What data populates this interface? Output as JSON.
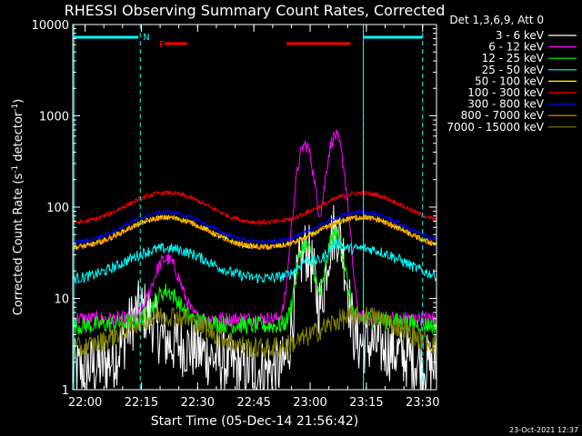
{
  "chart_data": {
    "type": "line",
    "title": "RHESSI Observing Summary Count Rates, Corrected",
    "xlabel": "Start Time (05-Dec-14 21:56:42)",
    "ylabel_main": "Corrected Count Rate (s",
    "ylabel_sup1": "-1",
    "ylabel_mid": " detector",
    "ylabel_sup2": "-1",
    "ylabel_end": ")",
    "yscale": "log",
    "ylim": [
      1,
      10000
    ],
    "xlim_minutes": [
      0,
      97
    ],
    "ytick_values": [
      1,
      10,
      100,
      1000,
      10000
    ],
    "ytick_labels": [
      "1",
      "10",
      "100",
      "1000",
      "10000"
    ],
    "xticks": [
      {
        "t": 3.3,
        "label": "22:00"
      },
      {
        "t": 18.3,
        "label": "22:15"
      },
      {
        "t": 33.3,
        "label": "22:30"
      },
      {
        "t": 48.3,
        "label": "22:45"
      },
      {
        "t": 63.3,
        "label": "23:00"
      },
      {
        "t": 78.3,
        "label": "23:15"
      },
      {
        "t": 93.3,
        "label": "23:30"
      }
    ],
    "legend_header": "Det 1,3,6,9, Att 0",
    "legend_placement": "outside-right",
    "series": [
      {
        "name": "3 - 6 keV",
        "color": "#ffffff",
        "baseline": 1.6,
        "orbit_amp": 1.0,
        "peak1": [
          18,
          2.6
        ],
        "peak2": [
          70,
          20
        ],
        "noise": 0.35
      },
      {
        "name": "6 - 12 keV",
        "color": "#ff00ff",
        "baseline": 6.0,
        "orbit_amp": 0.0,
        "peak1": [
          25,
          4.5
        ],
        "peak2": [
          70,
          100
        ],
        "noise": 0.08
      },
      {
        "name": "12 - 25 keV",
        "color": "#00ff00",
        "baseline": 5.0,
        "orbit_amp": 0.2,
        "peak1": [
          25,
          2.0
        ],
        "peak2": [
          70,
          9
        ],
        "noise": 0.1
      },
      {
        "name": "25 - 50 keV",
        "color": "#00ffff",
        "baseline": 16,
        "orbit_amp": 1.2,
        "peak1": [
          25,
          1.0
        ],
        "peak2": [
          70,
          1.3
        ],
        "noise": 0.06
      },
      {
        "name": "50 - 100 keV",
        "color": "#ffff00",
        "baseline": 35,
        "orbit_amp": 1.2,
        "peak1": [
          25,
          1.0
        ],
        "peak2": [
          70,
          1.0
        ],
        "noise": 0.03
      },
      {
        "name": "100 - 300 keV",
        "color": "#ff0000",
        "baseline": 65,
        "orbit_amp": 1.2,
        "peak1": [
          25,
          1.0
        ],
        "peak2": [
          70,
          1.0
        ],
        "noise": 0.025
      },
      {
        "name": "300 - 800 keV",
        "color": "#0000ff",
        "baseline": 40,
        "orbit_amp": 1.2,
        "peak1": [
          25,
          1.0
        ],
        "peak2": [
          70,
          1.0
        ],
        "noise": 0.025
      },
      {
        "name": "800 - 7000 keV",
        "color": "#ff8c00",
        "baseline": 35,
        "orbit_amp": 1.2,
        "peak1": [
          25,
          1.0
        ],
        "peak2": [
          70,
          1.0
        ],
        "noise": 0.025
      },
      {
        "name": "7000 - 15000 keV",
        "color": "#808000",
        "baseline": 2.7,
        "orbit_amp": 1.4,
        "peak1": [
          25,
          1.0
        ],
        "peak2": [
          70,
          1.0
        ],
        "noise": 0.12
      }
    ],
    "orbit_peaks_minutes": [
      25,
      77
    ],
    "night_boundaries_minutes": [
      18.0,
      77.5,
      93.3
    ],
    "night_markers_minutes": [
      0.3,
      77.5
    ],
    "night_bars": [
      [
        0.3,
        17.5
      ],
      [
        77.5,
        93.3
      ]
    ],
    "flare_bars": [
      [
        24.5,
        30.5
      ],
      [
        57,
        74
      ]
    ],
    "annotations": [
      {
        "text": "N",
        "t": 18.0,
        "color": "#00ffff"
      },
      {
        "text": "F",
        "t": 22.3,
        "color": "#ff0000"
      }
    ]
  },
  "timestamp": "23-Oct-2021 12:37"
}
